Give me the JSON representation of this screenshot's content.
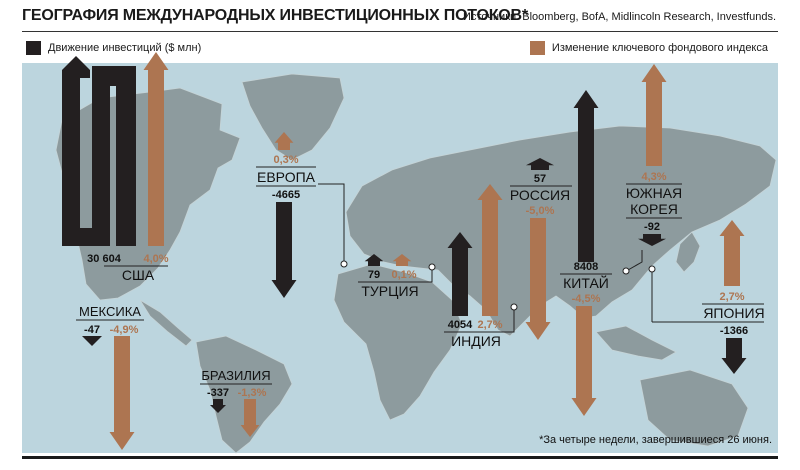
{
  "header": {
    "title": "ГЕОГРАФИЯ МЕЖДУНАРОДНЫХ ИНВЕСТИЦИОННЫХ ПОТОКОВ*",
    "sources": "Источники: Bloomberg, BofA, Midlincoln Research, Investfunds."
  },
  "legend": {
    "investment": "Движение инвестиций ($ млн)",
    "index": "Изменение ключевого фондового индекса"
  },
  "footnote": "*За четыре недели, завершившиеся 26 июня.",
  "colors": {
    "investment": "#231f20",
    "index": "#ad7551",
    "map_water": "#bcd5de",
    "map_land": "#8d9b9e",
    "map_border": "#c5d3d6"
  },
  "chart_data": {
    "type": "bar",
    "categories": [
      "США",
      "МЕКСИКА",
      "БРАЗИЛИЯ",
      "ЕВРОПА",
      "ТУРЦИЯ",
      "ИНДИЯ",
      "РОССИЯ",
      "КИТАЙ",
      "ЮЖНАЯ КОРЕЯ",
      "ЯПОНИЯ"
    ],
    "series": [
      {
        "name": "Движение инвестиций ($ млн)",
        "values": [
          30604,
          -47,
          -337,
          -4665,
          79,
          4054,
          57,
          8408,
          -92,
          -1366
        ],
        "labels": [
          "30 604",
          "-47",
          "-337",
          "-4665",
          "79",
          "4054",
          "57",
          "8408",
          "-92",
          "-1366"
        ]
      },
      {
        "name": "Изменение ключевого фондового индекса",
        "values": [
          4.0,
          -4.9,
          -1.3,
          0.3,
          0.1,
          2.7,
          -5.0,
          -4.5,
          4.3,
          2.7
        ],
        "labels": [
          "4,0%",
          "-4,9%",
          "-1,3%",
          "0,3%",
          "0,1%",
          "2,7%",
          "-5,0%",
          "-4,5%",
          "4,3%",
          "2,7%"
        ]
      }
    ],
    "region_labels": [
      "США",
      "МЕКСИКА",
      "БРАЗИЛИЯ",
      "ЕВРОПА",
      "ТУРЦИЯ",
      "ИНДИЯ",
      "РОССИЯ",
      "КИТАЙ",
      "ЮЖНАЯ\nКОРЕЯ",
      "ЯПОНИЯ"
    ],
    "grid": false,
    "legend_position": "top"
  }
}
